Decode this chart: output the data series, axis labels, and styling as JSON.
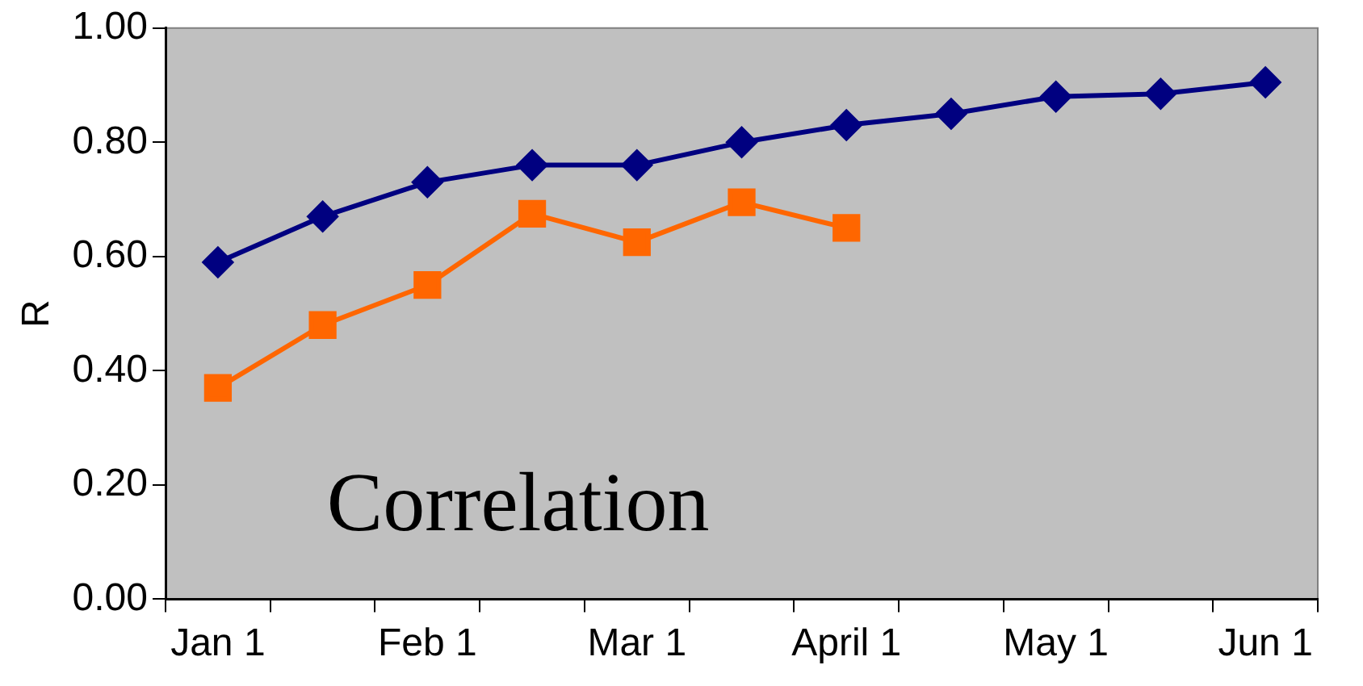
{
  "chart_data": {
    "type": "line",
    "ylabel": "R",
    "annotations": [
      "Correlation"
    ],
    "categories": [
      "Jan 1",
      null,
      "Feb 1",
      null,
      "Mar 1",
      null,
      "April 1",
      null,
      "May 1",
      null,
      "Jun 1"
    ],
    "series": [
      {
        "color": "#000080",
        "marker": "diamond",
        "values": [
          0.59,
          0.67,
          0.73,
          0.76,
          0.76,
          0.8,
          0.83,
          0.85,
          0.88,
          0.885,
          0.905
        ]
      },
      {
        "color": "#ff6600",
        "marker": "square",
        "values": [
          0.37,
          0.48,
          0.55,
          0.675,
          0.625,
          0.695,
          0.65,
          null,
          null,
          null,
          null
        ]
      }
    ],
    "ylim": [
      0,
      1
    ],
    "yticks": [
      {
        "value": 0,
        "label": "0.00"
      },
      {
        "value": 0.2,
        "label": "0.20"
      },
      {
        "value": 0.4,
        "label": "0.40"
      },
      {
        "value": 0.6,
        "label": "0.60"
      },
      {
        "value": 0.8,
        "label": "0.80"
      },
      {
        "value": 1,
        "label": "1.00"
      }
    ],
    "grid": false,
    "legend": false
  }
}
